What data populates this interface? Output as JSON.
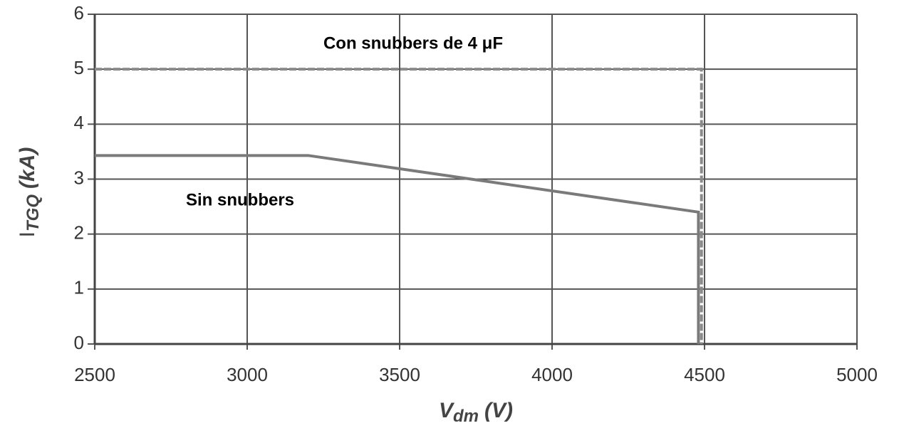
{
  "chart_data": {
    "type": "line",
    "x_label": {
      "main": "V",
      "sub": "dm",
      "unit": "(V)"
    },
    "y_label": {
      "main": "I",
      "sub": "TGQ",
      "unit": "(kA)"
    },
    "series": [
      {
        "name": "Sin snubbers",
        "color": "#7a7a7a",
        "dashed": false,
        "x": [
          2500,
          3200,
          4480,
          4480
        ],
        "y": [
          3.43,
          3.43,
          2.4,
          0
        ]
      },
      {
        "name": "Con snubbers de 4 μF",
        "color": "#8a8a8a",
        "dashed": true,
        "x": [
          2500,
          4490,
          4490
        ],
        "y": [
          5,
          5,
          0
        ]
      }
    ],
    "xlim": [
      2500,
      5000
    ],
    "xticks": [
      2500,
      3000,
      3500,
      4000,
      4500,
      5000
    ],
    "ylim": [
      0,
      6
    ],
    "yticks": [
      0,
      1,
      2,
      3,
      4,
      5,
      6
    ],
    "grid": true
  }
}
